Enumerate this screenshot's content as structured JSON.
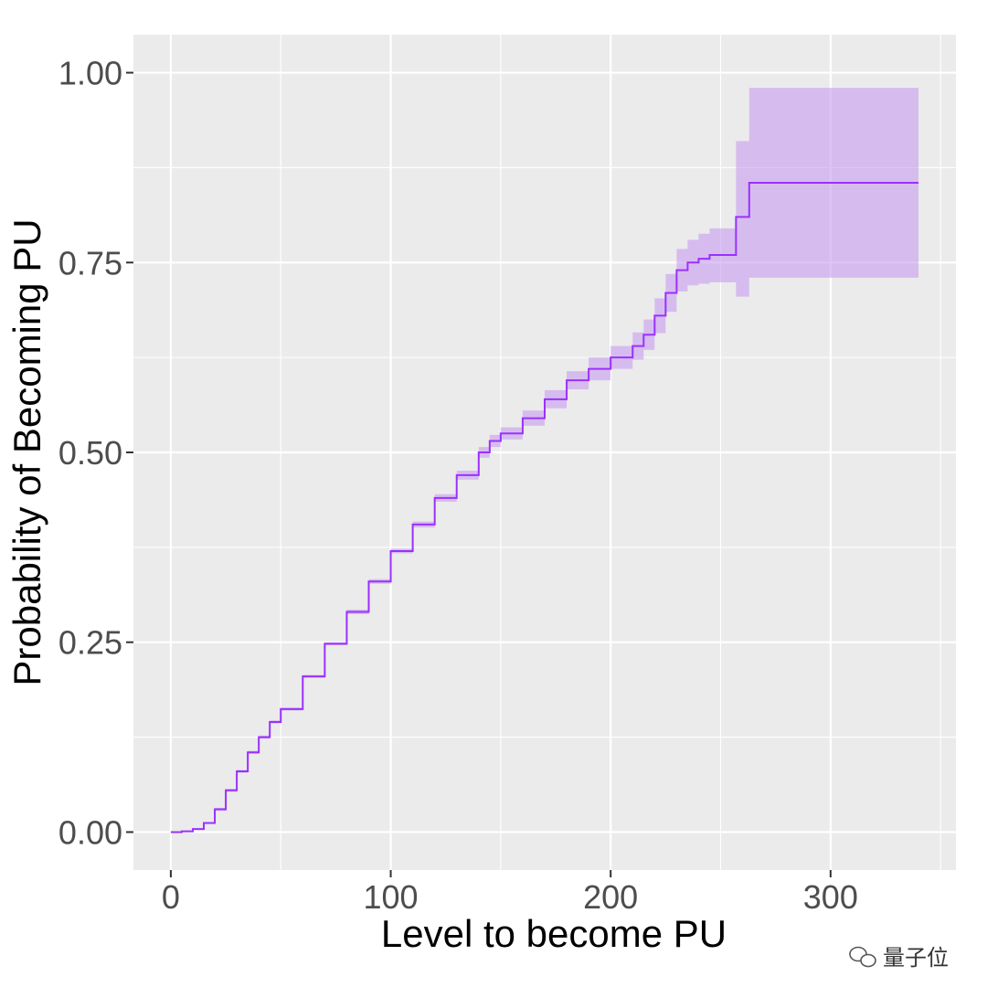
{
  "chart_data": {
    "type": "line",
    "title": "",
    "xlabel": "Level to become PU",
    "ylabel": "Probability of Becoming PU",
    "xlim": [
      -17,
      357
    ],
    "ylim": [
      -0.05,
      1.05
    ],
    "x_ticks": [
      0,
      100,
      200,
      300
    ],
    "x_tick_labels": [
      "0",
      "100",
      "200",
      "300"
    ],
    "y_ticks": [
      0,
      0.25,
      0.5,
      0.75,
      1.0
    ],
    "y_tick_labels": [
      "0.00",
      "0.25",
      "0.50",
      "0.75",
      "1.00"
    ],
    "grid": true,
    "legend": "none",
    "series": [
      {
        "type": "step",
        "color": "#9b30ff",
        "x": [
          0,
          5,
          10,
          15,
          20,
          25,
          30,
          35,
          40,
          45,
          50,
          60,
          70,
          80,
          90,
          100,
          110,
          120,
          130,
          140,
          145,
          150,
          160,
          170,
          180,
          190,
          200,
          210,
          215,
          220,
          225,
          230,
          235,
          240,
          245,
          250,
          257,
          263,
          340
        ],
        "y": [
          0.0,
          0.001,
          0.004,
          0.012,
          0.03,
          0.055,
          0.08,
          0.105,
          0.125,
          0.145,
          0.162,
          0.205,
          0.248,
          0.29,
          0.33,
          0.37,
          0.405,
          0.44,
          0.47,
          0.5,
          0.515,
          0.525,
          0.545,
          0.57,
          0.595,
          0.61,
          0.625,
          0.64,
          0.655,
          0.68,
          0.71,
          0.74,
          0.75,
          0.755,
          0.76,
          0.76,
          0.81,
          0.855,
          0.855
        ],
        "ci_lower": [
          0.0,
          0.001,
          0.003,
          0.011,
          0.028,
          0.053,
          0.078,
          0.103,
          0.123,
          0.143,
          0.16,
          0.203,
          0.246,
          0.287,
          0.327,
          0.367,
          0.401,
          0.435,
          0.464,
          0.493,
          0.507,
          0.517,
          0.535,
          0.558,
          0.583,
          0.595,
          0.61,
          0.622,
          0.635,
          0.657,
          0.685,
          0.712,
          0.72,
          0.722,
          0.724,
          0.724,
          0.705,
          0.73,
          0.73
        ],
        "ci_upper": [
          0.0,
          0.001,
          0.005,
          0.013,
          0.032,
          0.057,
          0.082,
          0.107,
          0.127,
          0.147,
          0.164,
          0.207,
          0.25,
          0.293,
          0.333,
          0.373,
          0.409,
          0.445,
          0.476,
          0.507,
          0.523,
          0.533,
          0.555,
          0.582,
          0.607,
          0.625,
          0.64,
          0.658,
          0.675,
          0.703,
          0.735,
          0.768,
          0.78,
          0.788,
          0.795,
          0.795,
          0.91,
          0.98,
          0.98
        ]
      }
    ],
    "ci_fill_color": "#c89cf0",
    "panel_color": "#ebebeb",
    "grid_color": "#ffffff"
  },
  "watermark": {
    "text": "量子位",
    "icon": "wechat-icon"
  }
}
